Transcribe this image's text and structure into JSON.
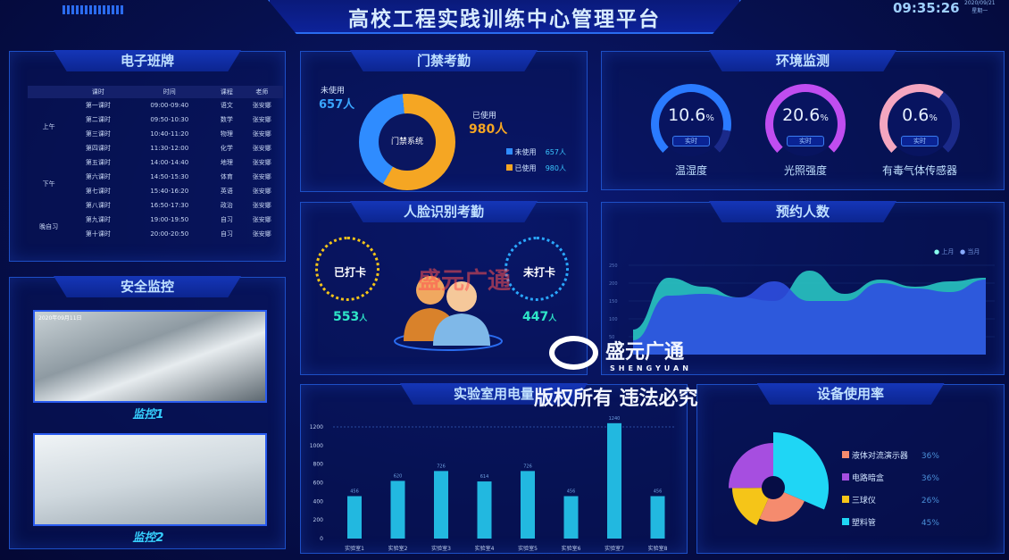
{
  "header": {
    "title": "高校工程实践训练中心管理平台",
    "time": "09:35:26",
    "date": "2020/09/21",
    "weekday": "星期一"
  },
  "class_board": {
    "title": "电子班牌",
    "columns": [
      "课时",
      "时间",
      "课程",
      "老师"
    ],
    "groups": [
      "上午",
      "下午",
      "晚自习"
    ],
    "rows": [
      [
        "第一课时",
        "09:00-09:40",
        "语文",
        "张安娜"
      ],
      [
        "第二课时",
        "09:50-10:30",
        "数学",
        "张安娜"
      ],
      [
        "第三课时",
        "10:40-11:20",
        "物理",
        "张安娜"
      ],
      [
        "第四课时",
        "11:30-12:00",
        "化学",
        "张安娜"
      ],
      [
        "第五课时",
        "14:00-14:40",
        "地理",
        "张安娜"
      ],
      [
        "第六课时",
        "14:50-15:30",
        "体育",
        "张安娜"
      ],
      [
        "第七课时",
        "15:40-16:20",
        "英语",
        "张安娜"
      ],
      [
        "第八课时",
        "16:50-17:30",
        "政治",
        "张安娜"
      ],
      [
        "第九课时",
        "19:00-19:50",
        "自习",
        "张安娜"
      ],
      [
        "第十课时",
        "20:00-20:50",
        "自习",
        "张安娜"
      ]
    ]
  },
  "security": {
    "title": "安全监控",
    "cams": [
      {
        "label": "监控1",
        "stamp": "2020年09月11日"
      },
      {
        "label": "监控2"
      }
    ]
  },
  "access": {
    "title": "门禁考勤",
    "center": "门禁系统",
    "unused_label": "未使用",
    "unused_value": "657人",
    "used_label": "已使用",
    "used_value": "980人",
    "unused": 657,
    "used": 980,
    "colors": {
      "unused": "#2f8cff",
      "used": "#f5a623"
    }
  },
  "face": {
    "title": "人脸识别考勤",
    "checked_label": "已打卡",
    "checked_value": "553",
    "unchecked_label": "未打卡",
    "unchecked_value": "447",
    "unit": "人"
  },
  "env": {
    "title": "环境监测",
    "gauges": [
      {
        "value": "10.6",
        "unit": "%",
        "pct": 10.6,
        "badge": "实时",
        "name": "温湿度",
        "color": "#2a7bff"
      },
      {
        "value": "20.6",
        "unit": "%",
        "pct": 20.6,
        "badge": "实时",
        "name": "光照强度",
        "color": "#c04df0"
      },
      {
        "value": "0.6",
        "unit": "%",
        "pct": 0.6,
        "badge": "实时",
        "name": "有毒气体传感器",
        "color": "#f4a6c0"
      }
    ]
  },
  "booking": {
    "title": "预约人数",
    "legend": [
      "上月",
      "当月"
    ],
    "yticks": [
      "250",
      "200",
      "150",
      "100",
      "50"
    ]
  },
  "power": {
    "title": "实验室用电量"
  },
  "device": {
    "title": "设备使用率",
    "items": [
      {
        "name": "液体对流演示器",
        "pct": "36%",
        "value": 36,
        "color": "#f58b6e"
      },
      {
        "name": "电路暗盒",
        "pct": "36%",
        "value": 36,
        "color": "#a64ee0"
      },
      {
        "name": "三球仪",
        "pct": "26%",
        "value": 26,
        "color": "#f5c518"
      },
      {
        "name": "塑料管",
        "pct": "45%",
        "value": 45,
        "color": "#1fd6f5"
      }
    ]
  },
  "watermark": {
    "brand": "盛元广通",
    "brand_en": "SHENGYUAN",
    "copyright": "版权所有 违法必究"
  },
  "chart_data": [
    {
      "type": "bar",
      "title": "实验室用电量",
      "categories": [
        "实验室1",
        "实验室2",
        "实验室3",
        "实验室4",
        "实验室5",
        "实验室6",
        "实验室7",
        "实验室8"
      ],
      "values": [
        456,
        620,
        726,
        614,
        726,
        456,
        1240,
        456
      ],
      "ylim": [
        0,
        1200
      ],
      "yticks": [
        0,
        200,
        400,
        600,
        800,
        1000,
        1200
      ]
    },
    {
      "type": "area",
      "title": "预约人数",
      "series": [
        {
          "name": "上月",
          "values": [
            70,
            215,
            190,
            160,
            150,
            235,
            170,
            210,
            190,
            205,
            215
          ]
        },
        {
          "name": "当月",
          "values": [
            40,
            165,
            170,
            160,
            205,
            150,
            150,
            200,
            185,
            175,
            210
          ]
        }
      ],
      "ylim": [
        0,
        250
      ]
    }
  ]
}
